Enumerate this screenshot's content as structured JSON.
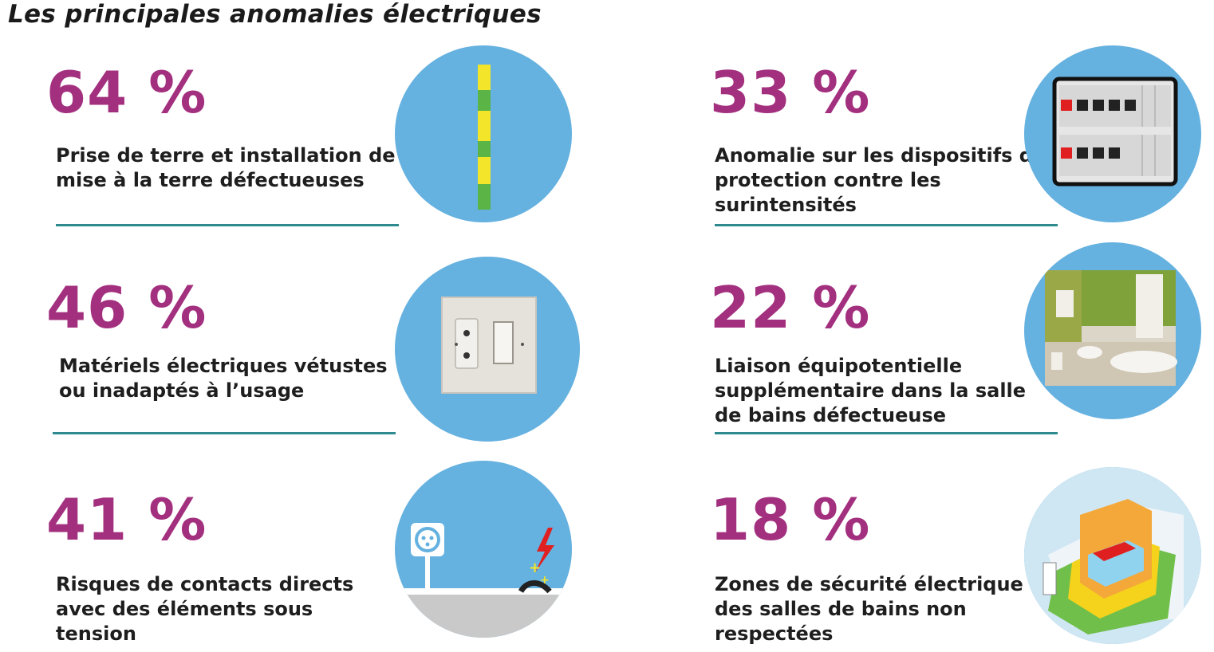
{
  "title": "Les principales anomalies électriques",
  "items": [
    {
      "percent": "64 %",
      "label": "Prise de terre et installation de mise à la terre défectueuses",
      "icon": "ground-wire-icon"
    },
    {
      "percent": "33 %",
      "label": "Anomalie sur les dispositifs de protection contre les surintensités",
      "icon": "breaker-panel-icon"
    },
    {
      "percent": "46 %",
      "label": "Matériels électriques vétustes ou inadaptés à l’usage",
      "icon": "outlet-switch-icon"
    },
    {
      "percent": "22 %",
      "label": "Liaison équipotentielle supplémentaire dans la salle de bains défectueuse",
      "icon": "bathroom-icon"
    },
    {
      "percent": "41 %",
      "label": "Risques de contacts directs avec des éléments sous tension",
      "icon": "damaged-cable-icon"
    },
    {
      "percent": "18 %",
      "label": "Zones de sécurité électrique des salles de bains non respectées",
      "icon": "bathroom-zones-icon"
    }
  ],
  "colors": {
    "percent": "#a3307f",
    "rule": "#2e8a8e",
    "circle": "#65b1e0"
  }
}
